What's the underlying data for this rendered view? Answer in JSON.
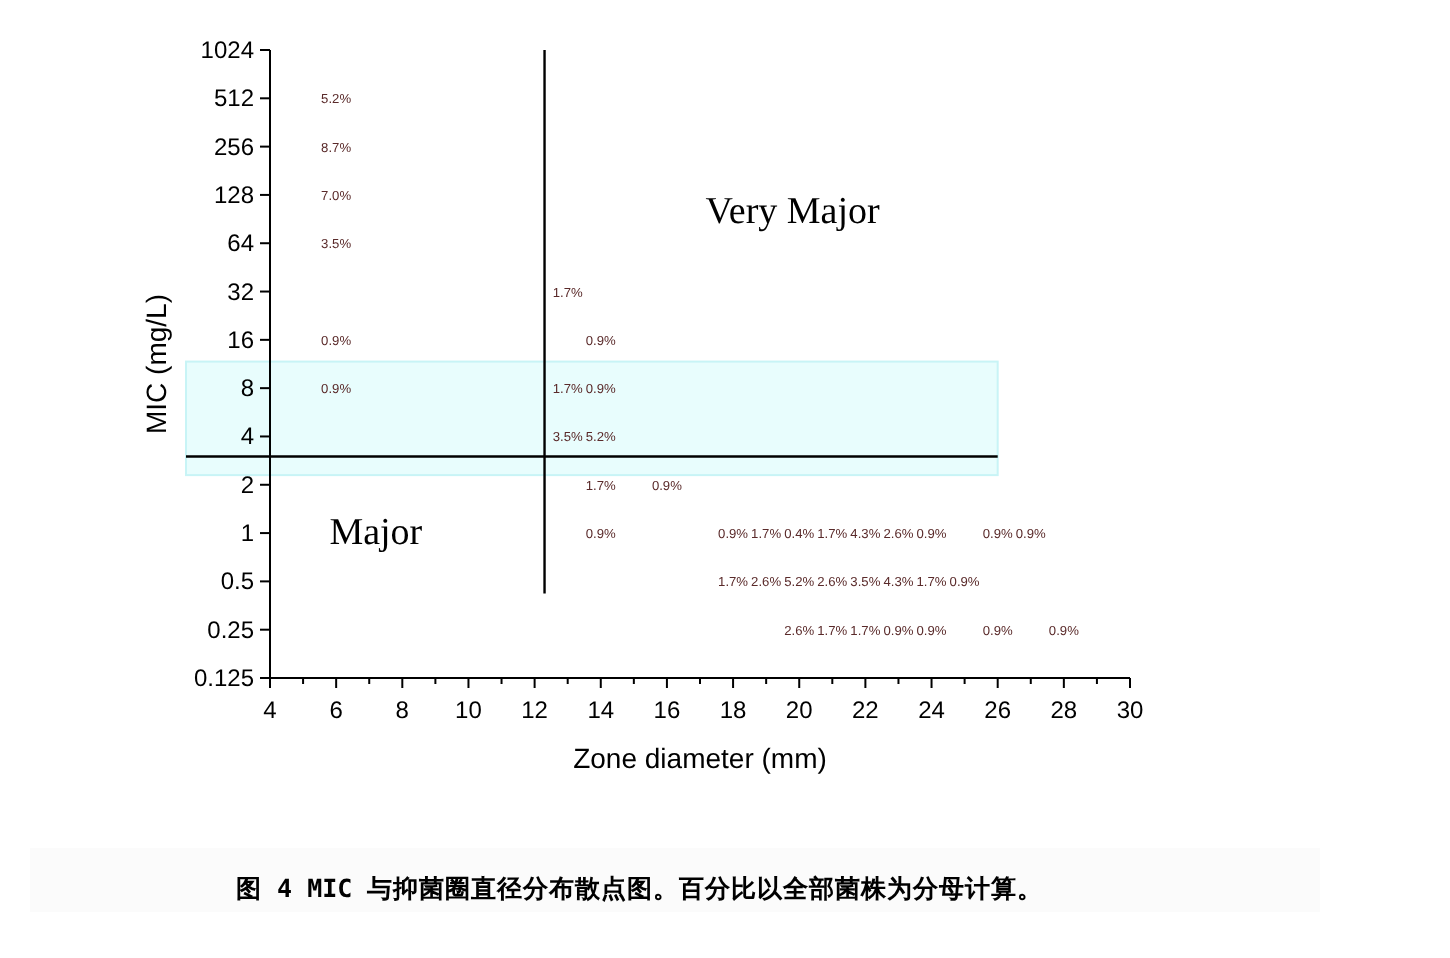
{
  "chart_data": {
    "type": "heatmap",
    "xlabel": "Zone diameter (mm)",
    "ylabel": "MIC (mg/L)",
    "categories": [
      "4",
      null,
      "6",
      null,
      "8",
      null,
      "10",
      null,
      "12",
      null,
      "14",
      null,
      "16",
      null,
      "18",
      null,
      "20",
      null,
      "22",
      null,
      "24",
      null,
      "26",
      null,
      "28",
      null,
      "30"
    ],
    "y_categories": [
      "1024",
      "512",
      "256",
      "128",
      "64",
      "32",
      "16",
      "8",
      "4",
      "2",
      "1",
      "0.5",
      "0.25",
      "0.125"
    ],
    "cells": [
      [
        null,
        null,
        null,
        null,
        null,
        null,
        null,
        null,
        null,
        null,
        null,
        null,
        null,
        null,
        null,
        null,
        null,
        null,
        null,
        null,
        null,
        null,
        null,
        null,
        null,
        null,
        null
      ],
      [
        null,
        null,
        5.2,
        null,
        null,
        null,
        null,
        null,
        null,
        null,
        null,
        null,
        null,
        null,
        null,
        null,
        null,
        null,
        null,
        null,
        null,
        null,
        null,
        null,
        null,
        null,
        null
      ],
      [
        null,
        null,
        8.7,
        null,
        null,
        null,
        null,
        null,
        null,
        null,
        null,
        null,
        null,
        null,
        null,
        null,
        null,
        null,
        null,
        null,
        null,
        null,
        null,
        null,
        null,
        null,
        null
      ],
      [
        null,
        null,
        7.0,
        null,
        null,
        null,
        null,
        null,
        null,
        null,
        null,
        null,
        null,
        null,
        null,
        null,
        null,
        null,
        null,
        null,
        null,
        null,
        null,
        null,
        null,
        null,
        null
      ],
      [
        null,
        null,
        3.5,
        null,
        null,
        null,
        null,
        null,
        null,
        null,
        null,
        null,
        null,
        null,
        null,
        null,
        null,
        null,
        null,
        null,
        null,
        null,
        null,
        null,
        null,
        null,
        null
      ],
      [
        null,
        null,
        null,
        null,
        null,
        null,
        null,
        null,
        null,
        1.7,
        null,
        null,
        null,
        null,
        null,
        null,
        null,
        null,
        null,
        null,
        null,
        null,
        null,
        null,
        null,
        null,
        null
      ],
      [
        null,
        null,
        0.9,
        null,
        null,
        null,
        null,
        null,
        null,
        null,
        0.9,
        null,
        null,
        null,
        null,
        null,
        null,
        null,
        null,
        null,
        null,
        null,
        null,
        null,
        null,
        null,
        null
      ],
      [
        null,
        null,
        0.9,
        null,
        null,
        null,
        null,
        null,
        null,
        1.7,
        0.9,
        null,
        null,
        null,
        null,
        null,
        null,
        null,
        null,
        null,
        null,
        null,
        null,
        null,
        null,
        null,
        null
      ],
      [
        null,
        null,
        null,
        null,
        null,
        null,
        null,
        null,
        null,
        3.5,
        5.2,
        null,
        null,
        null,
        null,
        null,
        null,
        null,
        null,
        null,
        null,
        null,
        null,
        null,
        null,
        null,
        null
      ],
      [
        null,
        null,
        null,
        null,
        null,
        null,
        null,
        null,
        null,
        null,
        1.7,
        null,
        0.9,
        null,
        null,
        null,
        null,
        null,
        null,
        null,
        null,
        null,
        null,
        null,
        null,
        null,
        null
      ],
      [
        null,
        null,
        null,
        null,
        null,
        null,
        null,
        null,
        null,
        null,
        0.9,
        null,
        null,
        null,
        0.9,
        1.7,
        0.4,
        1.7,
        4.3,
        2.6,
        0.9,
        null,
        0.9,
        0.9,
        null,
        null,
        null
      ],
      [
        null,
        null,
        null,
        null,
        null,
        null,
        null,
        null,
        null,
        null,
        null,
        null,
        null,
        null,
        1.7,
        2.6,
        5.2,
        2.6,
        3.5,
        4.3,
        1.7,
        0.9,
        null,
        null,
        null,
        null,
        null
      ],
      [
        null,
        null,
        null,
        null,
        null,
        null,
        null,
        null,
        null,
        null,
        null,
        null,
        null,
        null,
        null,
        null,
        2.6,
        1.7,
        1.7,
        0.9,
        0.9,
        null,
        0.9,
        null,
        0.9,
        null,
        null
      ],
      [
        null,
        null,
        null,
        null,
        null,
        null,
        null,
        null,
        null,
        null,
        null,
        null,
        null,
        null,
        null,
        null,
        null,
        null,
        null,
        null,
        null,
        null,
        null,
        null,
        null,
        null,
        null
      ]
    ],
    "cell_labels": [
      [
        null,
        null,
        null,
        null,
        null,
        null,
        null,
        null,
        null,
        null,
        null,
        null,
        null,
        null,
        null,
        null,
        null,
        null,
        null,
        null,
        null,
        null,
        null,
        null,
        null,
        null,
        null
      ],
      [
        null,
        null,
        "5.2%",
        null,
        null,
        null,
        null,
        null,
        null,
        null,
        null,
        null,
        null,
        null,
        null,
        null,
        null,
        null,
        null,
        null,
        null,
        null,
        null,
        null,
        null,
        null,
        null
      ],
      [
        null,
        null,
        "8.7%",
        null,
        null,
        null,
        null,
        null,
        null,
        null,
        null,
        null,
        null,
        null,
        null,
        null,
        null,
        null,
        null,
        null,
        null,
        null,
        null,
        null,
        null,
        null,
        null
      ],
      [
        null,
        null,
        "7.0%",
        null,
        null,
        null,
        null,
        null,
        null,
        null,
        null,
        null,
        null,
        null,
        null,
        null,
        null,
        null,
        null,
        null,
        null,
        null,
        null,
        null,
        null,
        null,
        null
      ],
      [
        null,
        null,
        "3.5%",
        null,
        null,
        null,
        null,
        null,
        null,
        null,
        null,
        null,
        null,
        null,
        null,
        null,
        null,
        null,
        null,
        null,
        null,
        null,
        null,
        null,
        null,
        null,
        null
      ],
      [
        null,
        null,
        null,
        null,
        null,
        null,
        null,
        null,
        null,
        "1.7%",
        null,
        null,
        null,
        null,
        null,
        null,
        null,
        null,
        null,
        null,
        null,
        null,
        null,
        null,
        null,
        null,
        null
      ],
      [
        null,
        null,
        "0.9%",
        null,
        null,
        null,
        null,
        null,
        null,
        null,
        "0.9%",
        null,
        null,
        null,
        null,
        null,
        null,
        null,
        null,
        null,
        null,
        null,
        null,
        null,
        null,
        null,
        null
      ],
      [
        null,
        null,
        "0.9%",
        null,
        null,
        null,
        null,
        null,
        null,
        "1.7%",
        "0.9%",
        null,
        null,
        null,
        null,
        null,
        null,
        null,
        null,
        null,
        null,
        null,
        null,
        null,
        null,
        null,
        null
      ],
      [
        null,
        null,
        null,
        null,
        null,
        null,
        null,
        null,
        null,
        "3.5%",
        "5.2%",
        null,
        null,
        null,
        null,
        null,
        null,
        null,
        null,
        null,
        null,
        null,
        null,
        null,
        null,
        null,
        null
      ],
      [
        null,
        null,
        null,
        null,
        null,
        null,
        null,
        null,
        null,
        null,
        "1.7%",
        null,
        "0.9%",
        null,
        null,
        null,
        null,
        null,
        null,
        null,
        null,
        null,
        null,
        null,
        null,
        null,
        null
      ],
      [
        null,
        null,
        null,
        null,
        null,
        null,
        null,
        null,
        null,
        null,
        "0.9%",
        null,
        null,
        null,
        "0.9%",
        "1.7%",
        "0.4%",
        "1.7%",
        "4.3%",
        "2.6%",
        "0.9%",
        null,
        "0.9%",
        "0.9%",
        null,
        null,
        null
      ],
      [
        null,
        null,
        null,
        null,
        null,
        null,
        null,
        null,
        null,
        null,
        null,
        null,
        null,
        null,
        "1.7%",
        "2.6%",
        "5.2%",
        "2.6%",
        "3.5%",
        "4.3%",
        "1.7%",
        "0.9%",
        null,
        null,
        null,
        null,
        null
      ],
      [
        null,
        null,
        null,
        null,
        null,
        null,
        null,
        null,
        null,
        null,
        null,
        null,
        null,
        null,
        null,
        null,
        "2.6%",
        "1.7%",
        "1.7%",
        "0.9%",
        "0.9%",
        null,
        "0.9%",
        null,
        "0.9%",
        null,
        null
      ],
      [
        null,
        null,
        null,
        null,
        null,
        null,
        null,
        null,
        null,
        null,
        null,
        null,
        null,
        null,
        null,
        null,
        null,
        null,
        null,
        null,
        null,
        null,
        null,
        null,
        null,
        null,
        null
      ]
    ],
    "annotations": [
      "Very Major",
      "Major",
      "图 4   MIC 与抑菌圈直径分布散点图。百分比以全部菌株为分母计算。"
    ]
  }
}
